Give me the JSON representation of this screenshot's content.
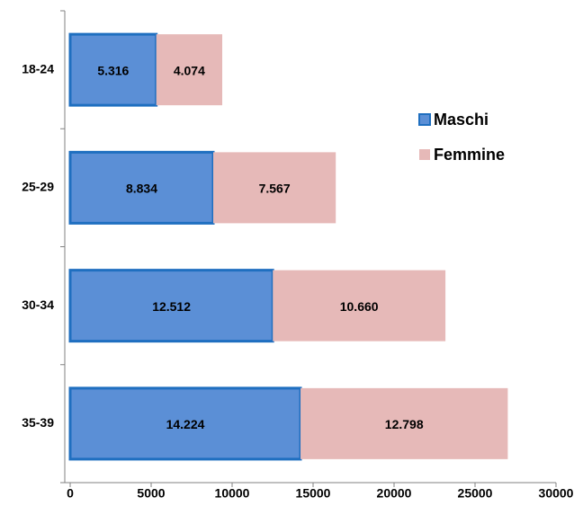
{
  "chart_data": {
    "type": "bar",
    "orientation": "horizontal",
    "stacked": true,
    "categories": [
      "18-24",
      "25-29",
      "30-34",
      "35-39"
    ],
    "series": [
      {
        "name": "Maschi",
        "color": "#5b8fd6",
        "values": [
          5316,
          8834,
          12512,
          14224
        ],
        "value_labels": [
          "5.316",
          "8.834",
          "12.512",
          "14.224"
        ]
      },
      {
        "name": "Femmine",
        "color": "#e6b9b8",
        "values": [
          4074,
          7567,
          10660,
          12798
        ],
        "value_labels": [
          "4.074",
          "7.567",
          "10.660",
          "12.798"
        ]
      }
    ],
    "xlim": [
      0,
      30000
    ],
    "xticks": [
      0,
      5000,
      10000,
      15000,
      20000,
      25000,
      30000
    ],
    "grid": false,
    "legend": "right"
  }
}
